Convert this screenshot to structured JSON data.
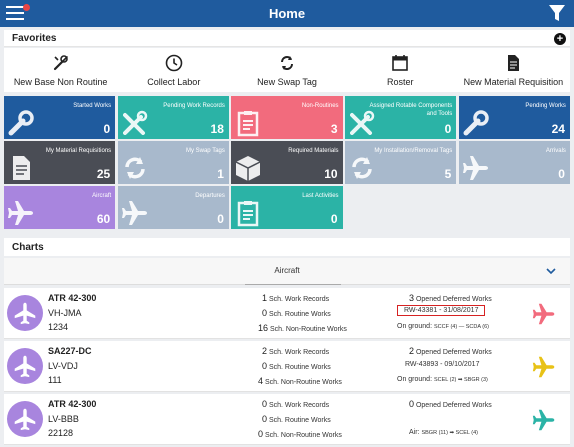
{
  "header": {
    "title": "Home"
  },
  "favorites": {
    "title": "Favorites",
    "items": [
      {
        "label": "New Base Non Routine",
        "icon": "wrench-screwdriver-icon"
      },
      {
        "label": "Collect Labor",
        "icon": "clock-icon"
      },
      {
        "label": "New Swap Tag",
        "icon": "swap-icon"
      },
      {
        "label": "Roster",
        "icon": "calendar-icon"
      },
      {
        "label": "New Material Requisition",
        "icon": "document-icon"
      }
    ]
  },
  "tiles": [
    {
      "label": "Started Works",
      "value": "0",
      "color": "#1f5b9e",
      "icon": "wrench-icon"
    },
    {
      "label": "Pending Work Records",
      "value": "18",
      "color": "#2bb3a6",
      "icon": "tools-icon"
    },
    {
      "label": "Non-Routines",
      "value": "3",
      "color": "#f26b7d",
      "icon": "clipboard-icon"
    },
    {
      "label": "Assigned Rotable Components and Tools",
      "value": "0",
      "color": "#2bb3a6",
      "icon": "tools-icon"
    },
    {
      "label": "Pending Works",
      "value": "24",
      "color": "#1f5b9e",
      "icon": "wrench-icon"
    },
    {
      "label": "My Material Requisitions",
      "value": "25",
      "color": "#4a4d55",
      "icon": "document-icon"
    },
    {
      "label": "My Swap Tags",
      "value": "1",
      "color": "#a8b9cc",
      "icon": "swap-icon"
    },
    {
      "label": "Required Materials",
      "value": "10",
      "color": "#4a4d55",
      "icon": "box-icon"
    },
    {
      "label": "My Installation/Removal Tags",
      "value": "5",
      "color": "#a8b9cc",
      "icon": "swap-icon"
    },
    {
      "label": "Arrivals",
      "value": "0",
      "color": "#a8b9cc",
      "icon": "plane-icon"
    },
    {
      "label": "Aircraft",
      "value": "60",
      "color": "#a885de",
      "icon": "plane-icon"
    },
    {
      "label": "Departures",
      "value": "0",
      "color": "#a8b9cc",
      "icon": "plane-icon"
    },
    {
      "label": "Last Activities",
      "value": "0",
      "color": "#2bb3a6",
      "icon": "clipboard-icon"
    }
  ],
  "charts": {
    "title": "Charts",
    "tab_label": "Aircraft"
  },
  "aircraft": [
    {
      "model": "ATR 42-300",
      "registration": "VH-JMA",
      "serial": "1234",
      "sch_work_records": "1",
      "sch_work_records_label": "Sch. Work Records",
      "sch_routine_works": "0",
      "sch_routine_works_label": "Sch. Routine Works",
      "sch_non_routine_works": "16",
      "sch_non_routine_works_label": "Sch. Non-Routine Works",
      "opened_deferred": "3",
      "opened_deferred_label": "Opened Deferred Works",
      "ref": "RW-43381 - 31/08/2017",
      "ref_highlighted": true,
      "route_prefix": "On ground: ",
      "route_text": "SCCF (4) — SCDA (6)",
      "plane_color": "#f26b7d"
    },
    {
      "model": "SA227-DC",
      "registration": "LV-VDJ",
      "serial": "111",
      "sch_work_records": "2",
      "sch_work_records_label": "Sch. Work Records",
      "sch_routine_works": "0",
      "sch_routine_works_label": "Sch. Routine Works",
      "sch_non_routine_works": "4",
      "sch_non_routine_works_label": "Sch. Non-Routine Works",
      "opened_deferred": "2",
      "opened_deferred_label": "Opened Deferred Works",
      "ref": "RW-43893 - 09/10/2017",
      "ref_highlighted": false,
      "route_prefix": "On ground: ",
      "route_text": "SCEL (2) ➡ SBGR (3)",
      "plane_color": "#e8c217"
    },
    {
      "model": "ATR 42-300",
      "registration": "LV-BBB",
      "serial": "22128",
      "sch_work_records": "0",
      "sch_work_records_label": "Sch. Work Records",
      "sch_routine_works": "0",
      "sch_routine_works_label": "Sch. Routine Works",
      "sch_non_routine_works": "0",
      "sch_non_routine_works_label": "Sch. Non-Routine Works",
      "opened_deferred": "0",
      "opened_deferred_label": "Opened Deferred Works",
      "ref": "",
      "ref_highlighted": false,
      "route_prefix": "Air: ",
      "route_text": "SBGR (11) ➡ SCEL (4)",
      "plane_color": "#2bb3a6"
    }
  ]
}
